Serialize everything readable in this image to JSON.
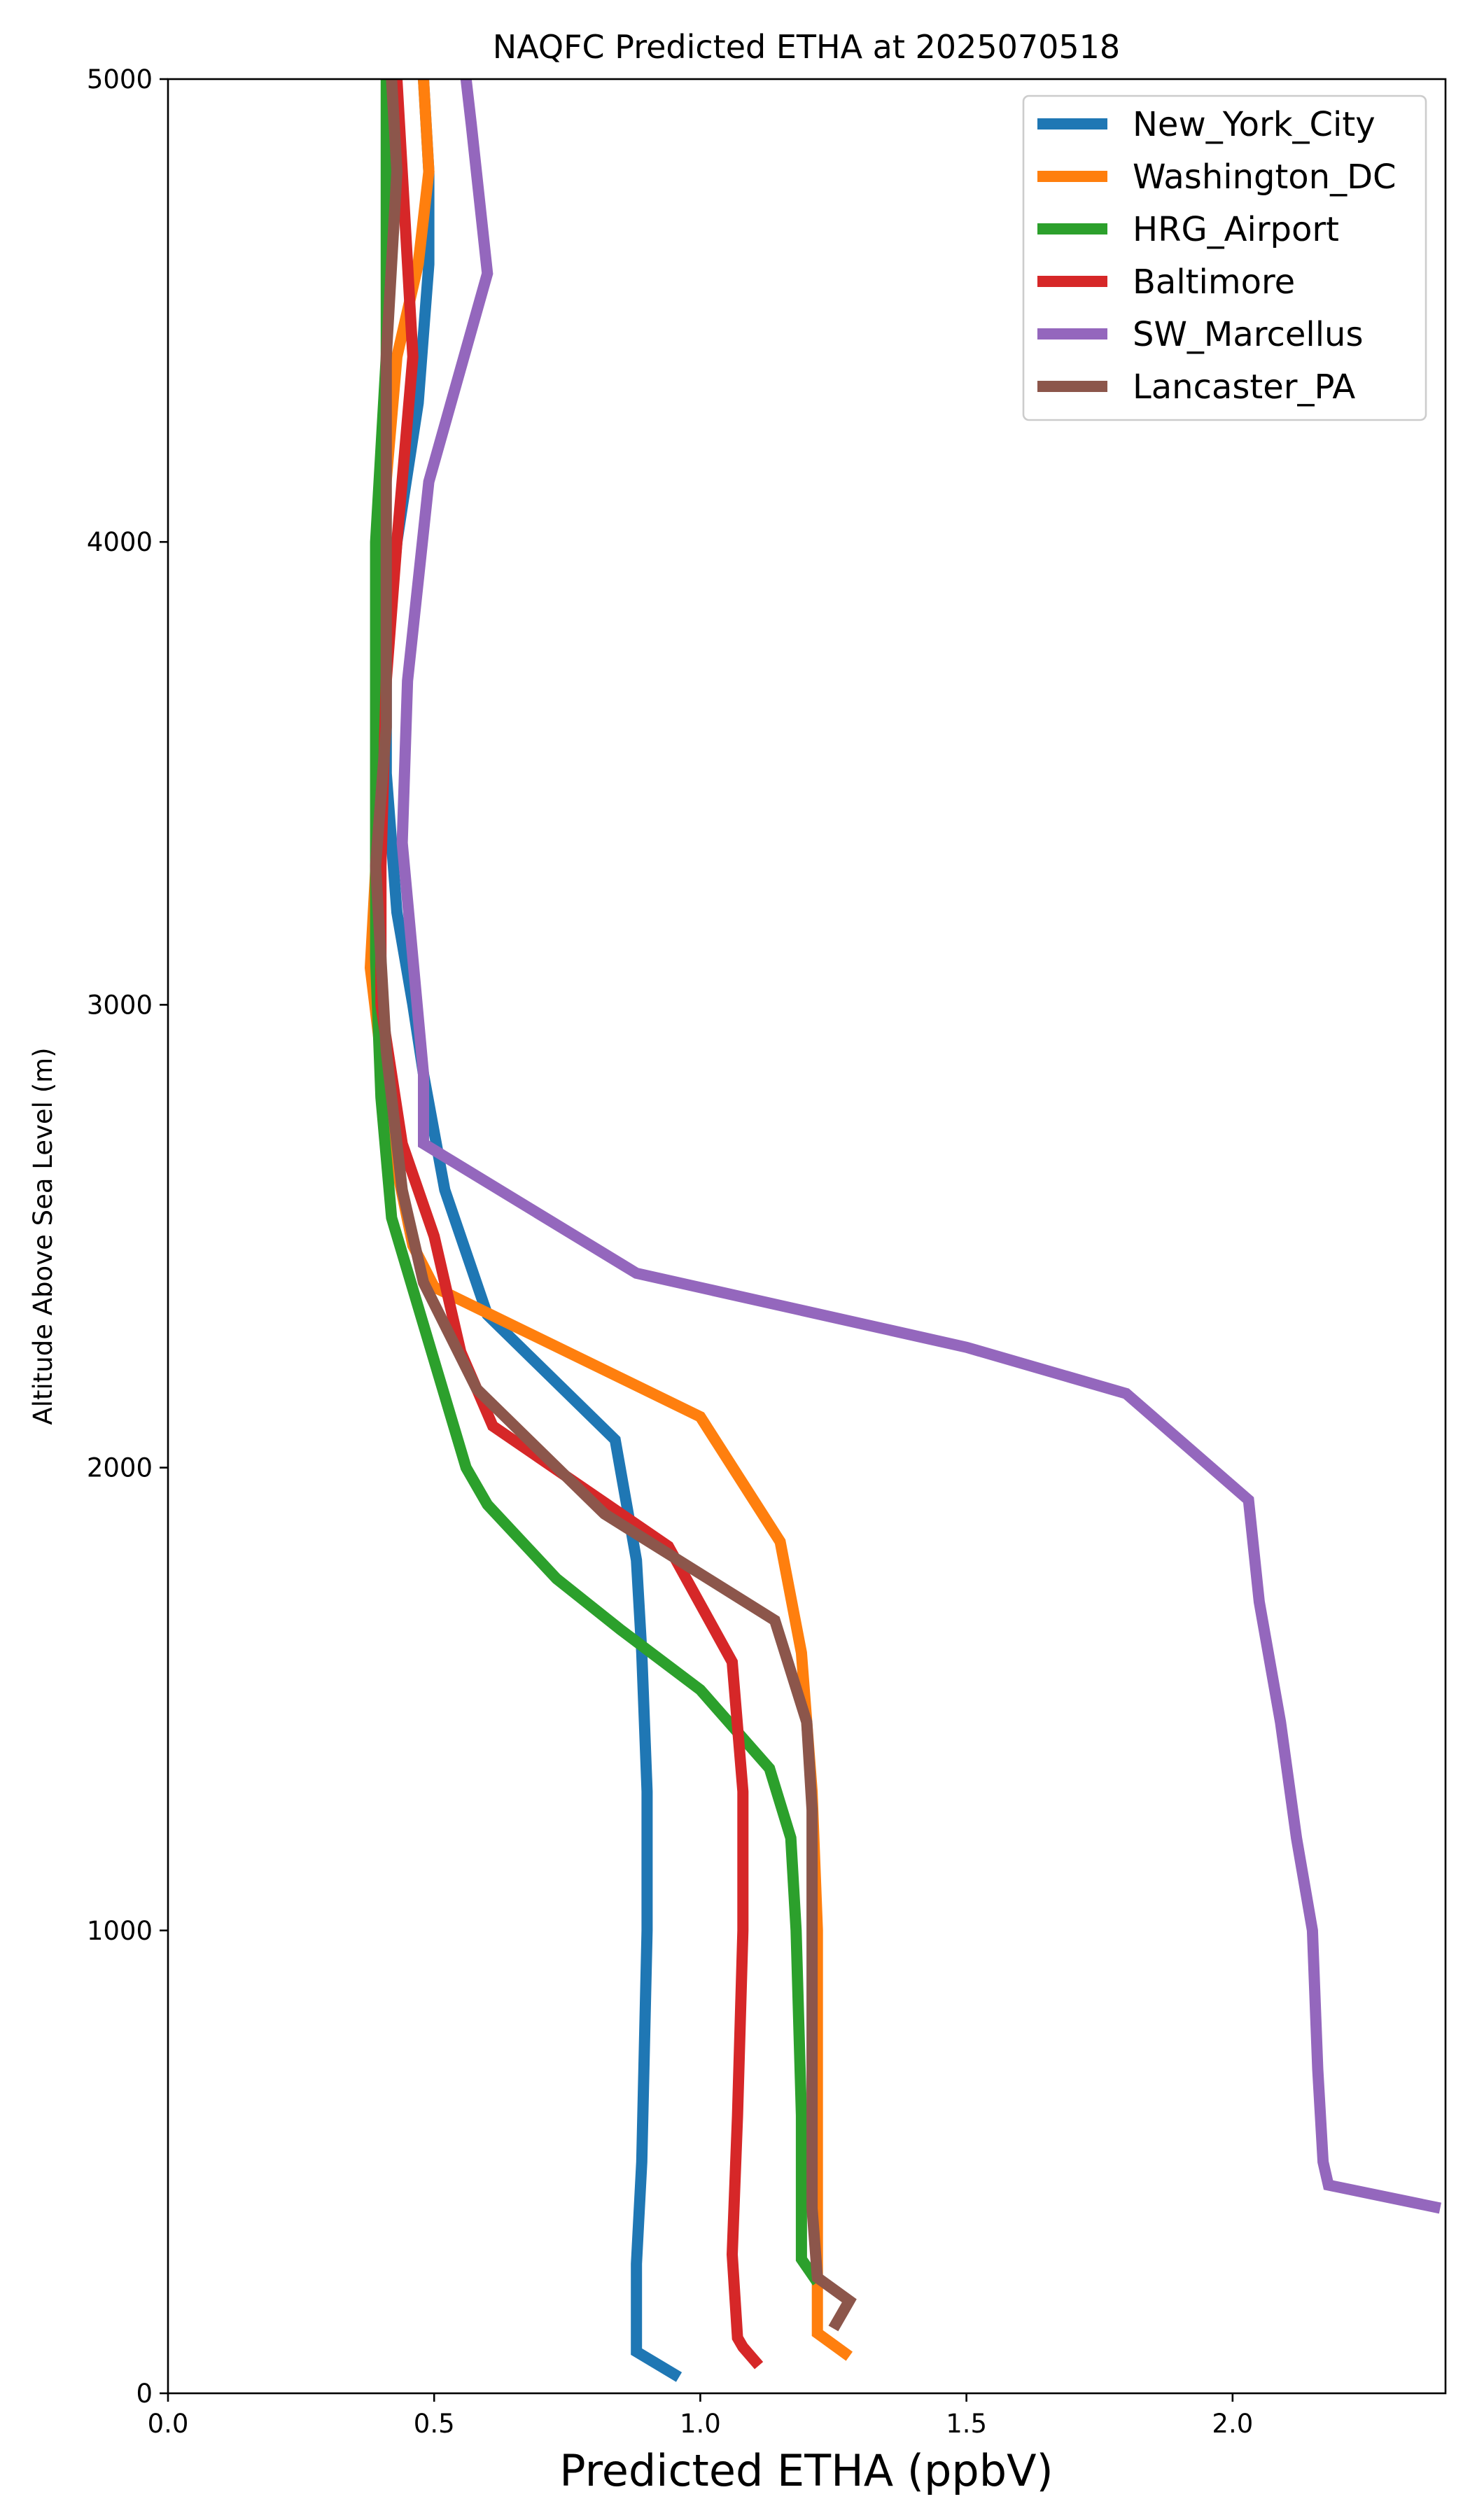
{
  "chart_data": {
    "type": "line",
    "title": "NAQFC Predicted ETHA at 2025070518",
    "xlabel": "Predicted ETHA (ppbV)",
    "ylabel": "Altitude Above Sea Level (m)",
    "xlim": [
      0.0,
      2.4
    ],
    "ylim": [
      0,
      5000
    ],
    "xticks": [
      0.0,
      0.5,
      1.0,
      1.5,
      2.0
    ],
    "xtick_labels": [
      "0.0",
      "0.5",
      "1.0",
      "1.5",
      "2.0"
    ],
    "yticks": [
      0,
      1000,
      2000,
      3000,
      4000,
      5000
    ],
    "ytick_labels": [
      "0",
      "1000",
      "2000",
      "3000",
      "4000",
      "5000"
    ],
    "legend_position": "top-right",
    "grid": false,
    "series": [
      {
        "name": "New_York_City",
        "color": "#1f77b4",
        "points": [
          [
            0.96,
            35
          ],
          [
            0.88,
            90
          ],
          [
            0.88,
            140
          ],
          [
            0.88,
            280
          ],
          [
            0.89,
            500
          ],
          [
            0.9,
            1000
          ],
          [
            0.9,
            1300
          ],
          [
            0.89,
            1600
          ],
          [
            0.88,
            1800
          ],
          [
            0.84,
            2060
          ],
          [
            0.6,
            2330
          ],
          [
            0.52,
            2600
          ],
          [
            0.48,
            2850
          ],
          [
            0.46,
            3000
          ],
          [
            0.43,
            3200
          ],
          [
            0.41,
            3500
          ],
          [
            0.41,
            3750
          ],
          [
            0.43,
            4000
          ],
          [
            0.47,
            4300
          ],
          [
            0.49,
            4600
          ],
          [
            0.49,
            4800
          ],
          [
            0.48,
            5000
          ]
        ]
      },
      {
        "name": "Washington_DC",
        "color": "#ff7f0e",
        "points": [
          [
            1.28,
            80
          ],
          [
            1.22,
            130
          ],
          [
            1.22,
            300
          ],
          [
            1.22,
            700
          ],
          [
            1.22,
            1000
          ],
          [
            1.21,
            1300
          ],
          [
            1.2,
            1450
          ],
          [
            1.19,
            1600
          ],
          [
            1.15,
            1840
          ],
          [
            1.0,
            2110
          ],
          [
            0.5,
            2390
          ],
          [
            0.46,
            2480
          ],
          [
            0.42,
            2700
          ],
          [
            0.38,
            3080
          ],
          [
            0.4,
            3500
          ],
          [
            0.4,
            4000
          ],
          [
            0.43,
            4400
          ],
          [
            0.47,
            4600
          ],
          [
            0.49,
            4800
          ],
          [
            0.48,
            5000
          ]
        ]
      },
      {
        "name": "HRG_Airport",
        "color": "#2ca02c",
        "points": [
          [
            1.22,
            240
          ],
          [
            1.19,
            290
          ],
          [
            1.19,
            600
          ],
          [
            1.18,
            1000
          ],
          [
            1.17,
            1200
          ],
          [
            1.13,
            1350
          ],
          [
            1.0,
            1520
          ],
          [
            0.85,
            1650
          ],
          [
            0.73,
            1760
          ],
          [
            0.6,
            1920
          ],
          [
            0.56,
            2000
          ],
          [
            0.49,
            2270
          ],
          [
            0.42,
            2540
          ],
          [
            0.4,
            2800
          ],
          [
            0.39,
            3100
          ],
          [
            0.39,
            3500
          ],
          [
            0.39,
            4000
          ],
          [
            0.41,
            4400
          ],
          [
            0.41,
            4900
          ],
          [
            0.41,
            5000
          ]
        ]
      },
      {
        "name": "Baltimore",
        "color": "#d62728",
        "points": [
          [
            1.11,
            60
          ],
          [
            1.08,
            100
          ],
          [
            1.07,
            120
          ],
          [
            1.06,
            300
          ],
          [
            1.07,
            600
          ],
          [
            1.08,
            1000
          ],
          [
            1.08,
            1300
          ],
          [
            1.06,
            1580
          ],
          [
            0.94,
            1830
          ],
          [
            0.61,
            2090
          ],
          [
            0.55,
            2250
          ],
          [
            0.5,
            2500
          ],
          [
            0.44,
            2700
          ],
          [
            0.4,
            3000
          ],
          [
            0.4,
            3300
          ],
          [
            0.41,
            3700
          ],
          [
            0.43,
            4000
          ],
          [
            0.46,
            4400
          ],
          [
            0.44,
            4800
          ],
          [
            0.43,
            5000
          ]
        ]
      },
      {
        "name": "SW_Marcellus",
        "color": "#9467bd",
        "points": [
          [
            2.39,
            400
          ],
          [
            2.18,
            450
          ],
          [
            2.17,
            500
          ],
          [
            2.16,
            700
          ],
          [
            2.15,
            1000
          ],
          [
            2.12,
            1200
          ],
          [
            2.09,
            1450
          ],
          [
            2.05,
            1710
          ],
          [
            2.03,
            1930
          ],
          [
            1.8,
            2160
          ],
          [
            1.5,
            2260
          ],
          [
            0.88,
            2420
          ],
          [
            0.48,
            2700
          ],
          [
            0.48,
            2850
          ],
          [
            0.46,
            3100
          ],
          [
            0.44,
            3350
          ],
          [
            0.45,
            3700
          ],
          [
            0.49,
            4130
          ],
          [
            0.6,
            4580
          ],
          [
            0.57,
            4900
          ],
          [
            0.56,
            5000
          ]
        ]
      },
      {
        "name": "Lancaster_PA",
        "color": "#8c564b",
        "points": [
          [
            1.25,
            140
          ],
          [
            1.28,
            200
          ],
          [
            1.22,
            250
          ],
          [
            1.21,
            400
          ],
          [
            1.21,
            700
          ],
          [
            1.21,
            1000
          ],
          [
            1.21,
            1260
          ],
          [
            1.2,
            1450
          ],
          [
            1.14,
            1670
          ],
          [
            0.82,
            1900
          ],
          [
            0.58,
            2170
          ],
          [
            0.48,
            2400
          ],
          [
            0.44,
            2600
          ],
          [
            0.41,
            2900
          ],
          [
            0.39,
            3300
          ],
          [
            0.41,
            3600
          ],
          [
            0.41,
            4000
          ],
          [
            0.41,
            4400
          ],
          [
            0.43,
            4800
          ],
          [
            0.42,
            5000
          ]
        ]
      }
    ]
  }
}
